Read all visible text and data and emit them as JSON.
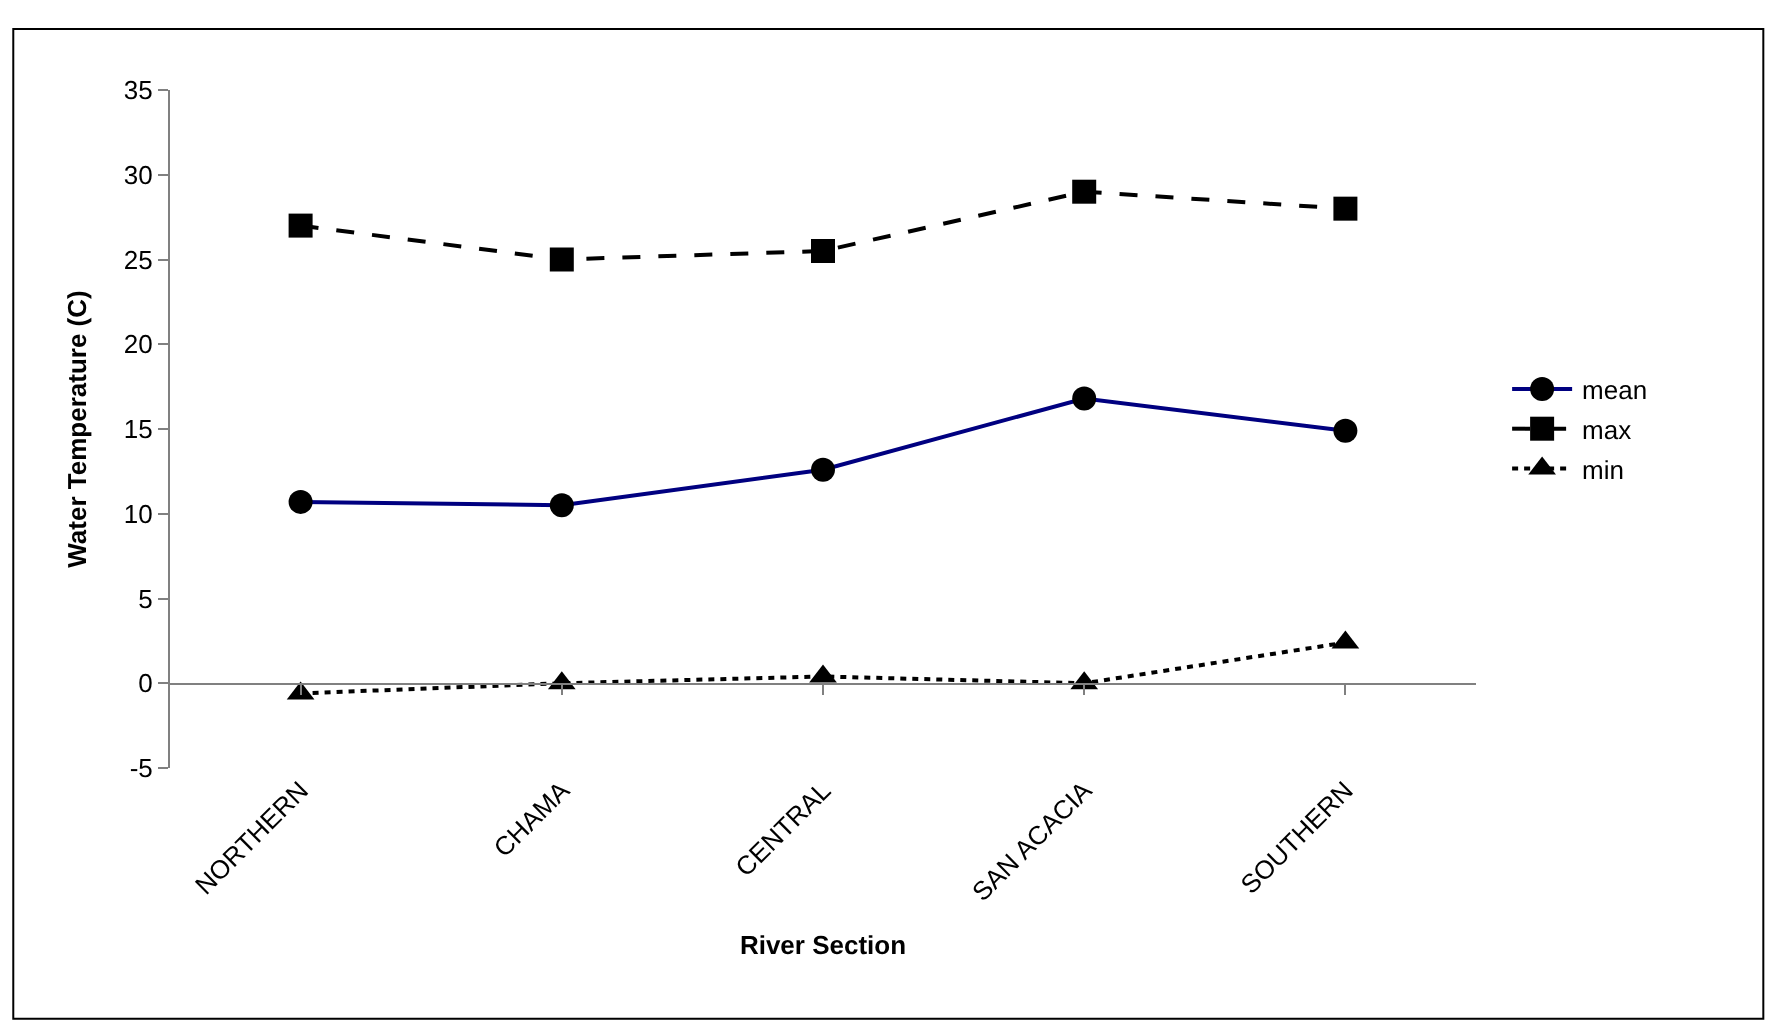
{
  "chart_data": {
    "type": "line",
    "xlabel": "River Section",
    "ylabel": "Water Temperature (C)",
    "categories": [
      "NORTHERN",
      "CHAMA",
      "CENTRAL",
      "SAN ACACIA",
      "SOUTHERN"
    ],
    "series": [
      {
        "name": "mean",
        "color": "#000080",
        "marker": "circle",
        "line_style": "solid",
        "values": [
          10.7,
          10.5,
          12.6,
          16.8,
          14.9
        ]
      },
      {
        "name": "max",
        "color": "#000000",
        "marker": "square",
        "line_style": "dashed",
        "values": [
          27,
          25,
          25.5,
          29,
          28
        ]
      },
      {
        "name": "min",
        "color": "#000000",
        "marker": "triangle",
        "line_style": "dotted",
        "values": [
          -0.6,
          0,
          0.4,
          0,
          2.4
        ]
      }
    ],
    "ylim": [
      -5,
      35
    ],
    "yticks": [
      -5,
      0,
      5,
      10,
      15,
      20,
      25,
      30,
      35
    ],
    "legend": "right"
  }
}
